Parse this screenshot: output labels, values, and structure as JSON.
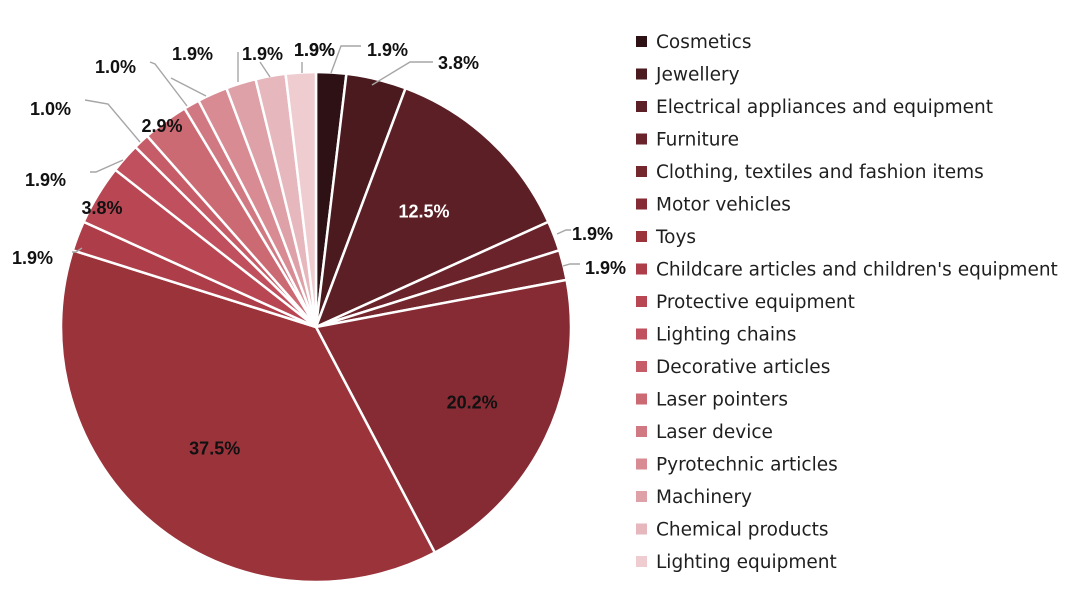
{
  "chart_data": {
    "type": "pie",
    "title": "",
    "legend_position": "right",
    "series": [
      {
        "name": "Cosmetics",
        "value": 1.9,
        "label": "1.9%",
        "color": "#2e1114"
      },
      {
        "name": "Jewellery",
        "value": 3.8,
        "label": "3.8%",
        "color": "#4a1a1f"
      },
      {
        "name": "Electrical appliances and equipment",
        "value": 12.5,
        "label": "12.5%",
        "color": "#5c1f25"
      },
      {
        "name": "Furniture",
        "value": 1.9,
        "label": "1.9%",
        "color": "#6a232a"
      },
      {
        "name": "Clothing, textiles and fashion items",
        "value": 1.9,
        "label": "1.9%",
        "color": "#75272e"
      },
      {
        "name": "Motor vehicles",
        "value": 20.2,
        "label": "20.2%",
        "color": "#862b33"
      },
      {
        "name": "Toys",
        "value": 37.5,
        "label": "37.5%",
        "color": "#9b333b"
      },
      {
        "name": "Childcare articles and children's equipment",
        "value": 1.9,
        "label": "1.9%",
        "color": "#ad3d48"
      },
      {
        "name": "Protective equipment",
        "value": 3.8,
        "label": "3.8%",
        "color": "#b84653"
      },
      {
        "name": "Lighting chains",
        "value": 1.9,
        "label": "1.9%",
        "color": "#c0505d"
      },
      {
        "name": "Decorative articles",
        "value": 1.0,
        "label": "1.0%",
        "color": "#c65c68"
      },
      {
        "name": "Laser pointers",
        "value": 2.9,
        "label": "2.9%",
        "color": "#cc6a74"
      },
      {
        "name": "Laser device",
        "value": 1.0,
        "label": "1.0%",
        "color": "#d17982"
      },
      {
        "name": "Pyrotechnic articles",
        "value": 1.9,
        "label": "1.9%",
        "color": "#d88b93"
      },
      {
        "name": "Machinery",
        "value": 1.9,
        "label": "1.9%",
        "color": "#dea1a8"
      },
      {
        "name": "Chemical products",
        "value": 1.9,
        "label": "1.9%",
        "color": "#e6b7bc"
      },
      {
        "name": "Lighting equipment",
        "value": 1.9,
        "label": "1.9%",
        "color": "#eeccd0"
      }
    ]
  }
}
